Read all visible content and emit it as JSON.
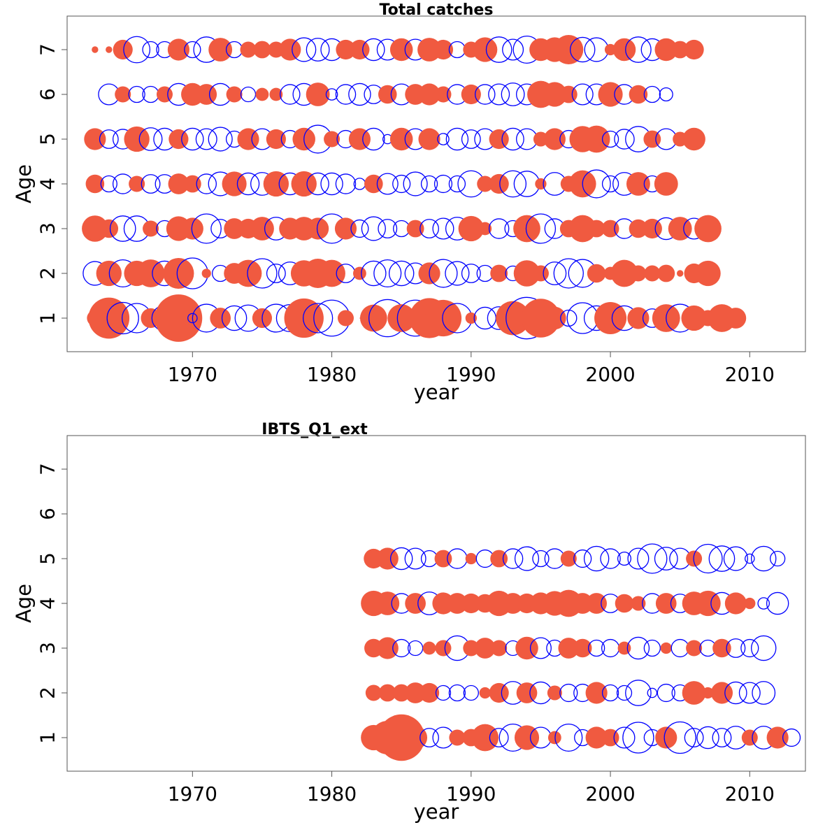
{
  "colors": {
    "positive": "#f05a40",
    "negative": "#0000ff",
    "frame": "#555555",
    "text": "#000000"
  },
  "chart_data": [
    {
      "type": "bubble",
      "title": "Total catches",
      "xlabel": "year",
      "ylabel": "Age",
      "xlim": [
        1961,
        2014
      ],
      "ylim": [
        0.25,
        7.75
      ],
      "x_ticks": [
        1970,
        1980,
        1990,
        2000,
        2010
      ],
      "y_ticks": [
        1,
        2,
        3,
        4,
        5,
        6,
        7
      ],
      "legend": "none",
      "grid": false,
      "encoding": "residual by age and year; filled red = positive, open blue = negative; circle size ~ magnitude",
      "residuals": {
        "1": {
          "start": 1963,
          "values": [
            0.3,
            1.95,
            -1.15,
            -1.0,
            0.45,
            -0.75,
            2.6,
            -0.1,
            -0.9,
            0.5,
            -0.7,
            -0.8,
            0.45,
            -0.9,
            -0.85,
            1.8,
            -1.0,
            -1.5,
            0.3,
            0.0,
            0.85,
            -1.6,
            0.9,
            -1.5,
            1.85,
            1.55,
            -1.0,
            0.15,
            -0.55,
            -0.6,
            1.35,
            -2.0,
            1.75,
            0.6,
            -0.3,
            -1.1,
            -0.7,
            1.2,
            -0.7,
            0.55,
            -0.4,
            0.9,
            -0.9,
            0.75,
            0.3,
            0.9,
            0.5
          ]
        },
        "2": {
          "start": 1963,
          "values": [
            -0.65,
            0.75,
            -0.85,
            0.75,
            0.9,
            -0.7,
            1.1,
            -1.1,
            0.1,
            -0.3,
            0.5,
            0.85,
            -1.0,
            -0.4,
            -0.6,
            0.8,
            1.0,
            0.85,
            -0.4,
            0.2,
            -0.7,
            -0.85,
            -0.7,
            -0.5,
            0.55,
            -0.9,
            -0.65,
            -0.4,
            -0.3,
            0.35,
            -0.25,
            0.8,
            0.3,
            -0.6,
            -1.0,
            -0.9,
            0.4,
            0.2,
            0.85,
            0.3,
            0.3,
            0.35,
            0.05,
            0.45,
            0.75
          ]
        },
        "3": {
          "start": 1963,
          "values": [
            0.8,
            0.4,
            -0.75,
            -0.75,
            0.3,
            -0.3,
            0.7,
            0.55,
            -1.0,
            -0.4,
            0.5,
            0.45,
            0.65,
            -0.6,
            0.55,
            0.65,
            0.55,
            -1.0,
            0.55,
            -0.35,
            -0.65,
            -0.4,
            -0.3,
            0.35,
            -0.4,
            -0.5,
            -0.6,
            0.75,
            0.2,
            -0.45,
            -0.3,
            0.85,
            -1.0,
            -0.45,
            0.35,
            0.85,
            0.35,
            0.35,
            -0.45,
            0.4,
            0.45,
            -0.55,
            0.65,
            -0.5,
            0.85
          ]
        },
        "4": {
          "start": 1963,
          "values": [
            0.4,
            -0.3,
            -0.45,
            0.3,
            -0.4,
            -0.4,
            0.5,
            0.35,
            -0.45,
            -0.65,
            0.7,
            -0.55,
            -0.6,
            0.75,
            -0.55,
            0.75,
            -0.55,
            -0.55,
            -0.45,
            -0.15,
            0.4,
            -0.5,
            -0.35,
            -0.65,
            -0.3,
            -0.35,
            -0.3,
            -0.8,
            0.3,
            0.45,
            -0.8,
            -0.75,
            0.15,
            -0.6,
            0.3,
            0.85,
            -0.9,
            -0.3,
            -0.6,
            0.65,
            -0.3,
            0.65
          ]
        },
        "5": {
          "start": 1963,
          "values": [
            0.55,
            -0.4,
            -0.45,
            0.75,
            -0.6,
            -0.55,
            0.45,
            -0.55,
            -0.5,
            -0.65,
            -0.3,
            0.55,
            -0.5,
            0.45,
            -0.35,
            0.6,
            -0.9,
            0.3,
            -0.35,
            0.55,
            -0.55,
            -0.1,
            0.6,
            -0.5,
            0.55,
            -0.15,
            -0.55,
            -0.4,
            -0.5,
            0.45,
            -0.55,
            -0.5,
            0.25,
            0.55,
            -0.35,
            0.8,
            0.85,
            -0.3,
            -0.45,
            -0.75,
            0.35,
            -0.5,
            0.25,
            0.6
          ]
        },
        "6": {
          "start": 1964,
          "values": [
            -0.5,
            0.3,
            -0.3,
            -0.3,
            0.3,
            -0.55,
            0.6,
            0.5,
            -0.55,
            0.3,
            -0.25,
            0.2,
            0.2,
            -0.45,
            -0.55,
            0.65,
            -0.15,
            -0.45,
            -0.55,
            -0.4,
            0.4,
            -0.5,
            0.5,
            0.55,
            0.3,
            -0.45,
            0.45,
            -0.45,
            -0.5,
            -0.6,
            -0.5,
            0.85,
            0.7,
            0.35,
            -0.5,
            -0.5,
            0.7,
            -0.45,
            0.4,
            -0.3,
            -0.2
          ]
        },
        "7": {
          "start": 1963,
          "values": [
            0.05,
            0.05,
            0.45,
            -0.8,
            -0.3,
            -0.3,
            0.55,
            -0.3,
            -0.75,
            0.65,
            -0.3,
            0.3,
            0.35,
            0.3,
            0.55,
            -0.65,
            -0.6,
            -0.55,
            0.45,
            0.45,
            -0.55,
            -0.5,
            0.6,
            -0.5,
            0.65,
            0.45,
            -0.3,
            0.3,
            0.7,
            -0.75,
            -0.5,
            -0.85,
            0.6,
            0.7,
            1.0,
            -0.7,
            -0.65,
            0.15,
            0.6,
            -0.75,
            -0.55,
            0.6,
            0.35,
            0.45
          ]
        }
      }
    },
    {
      "type": "bubble",
      "title": "IBTS_Q1_ext",
      "xlabel": "year",
      "ylabel": "Age",
      "xlim": [
        1961,
        2014
      ],
      "ylim": [
        0.25,
        7.75
      ],
      "x_ticks": [
        1970,
        1980,
        1990,
        2000,
        2010
      ],
      "y_ticks": [
        1,
        2,
        3,
        4,
        5,
        6,
        7
      ],
      "legend": "none",
      "grid": false,
      "encoding": "residual by age and year; filled red = positive, open blue = negative; circle size ~ magnitude",
      "residuals": {
        "1": {
          "start": 1983,
          "values": [
            0.75,
            1.3,
            2.5,
            0.65,
            -0.4,
            -0.5,
            0.3,
            0.35,
            0.85,
            -0.4,
            -0.85,
            0.7,
            -0.5,
            0.2,
            -0.85,
            -0.3,
            0.55,
            0.35,
            -0.5,
            -1.1,
            -0.3,
            0.55,
            -1.15,
            -0.4,
            -0.55,
            -0.4,
            -0.6,
            0.3,
            -0.6,
            0.55,
            -0.35
          ]
        },
        "2": {
          "start": 1983,
          "values": [
            0.3,
            0.35,
            0.35,
            0.5,
            0.45,
            -0.25,
            -0.3,
            -0.25,
            0.15,
            0.45,
            -0.6,
            0.5,
            -0.55,
            0.25,
            -0.35,
            -0.35,
            0.55,
            -0.3,
            -0.25,
            -0.75,
            -0.1,
            -0.35,
            -0.3,
            0.65,
            0.15,
            0.55,
            -0.55,
            -0.5,
            -0.6
          ]
        },
        "3": {
          "start": 1983,
          "values": [
            0.4,
            0.55,
            -0.35,
            -0.25,
            0.2,
            0.3,
            -0.7,
            0.3,
            0.5,
            0.3,
            -0.25,
            0.6,
            -0.5,
            -0.3,
            0.5,
            0.4,
            -0.3,
            -0.35,
            0.2,
            -0.55,
            -0.3,
            0.15,
            -0.35,
            0.3,
            -0.3,
            0.4,
            -0.4,
            -0.35,
            -0.7
          ]
        },
        "4": {
          "start": 1983,
          "values": [
            0.75,
            0.65,
            -0.45,
            0.5,
            -0.6,
            0.55,
            0.5,
            0.45,
            0.4,
            0.75,
            0.5,
            0.45,
            0.55,
            0.7,
            0.85,
            0.5,
            0.5,
            -0.4,
            0.4,
            0.25,
            -0.45,
            0.5,
            -0.4,
            0.65,
            0.75,
            -0.55,
            0.55,
            0.15,
            -0.15,
            -0.55
          ]
        },
        "5": {
          "start": 1983,
          "values": [
            0.45,
            0.55,
            -0.55,
            -0.5,
            -0.3,
            0.35,
            -0.45,
            0.15,
            -0.35,
            0.35,
            -0.45,
            -0.65,
            -0.3,
            -0.45,
            0.3,
            -0.35,
            -0.7,
            -0.45,
            -0.2,
            -0.5,
            -1.0,
            -0.6,
            -0.5,
            0.3,
            -0.95,
            -0.75,
            -0.65,
            -0.1,
            -0.7,
            -0.25
          ]
        }
      }
    }
  ]
}
